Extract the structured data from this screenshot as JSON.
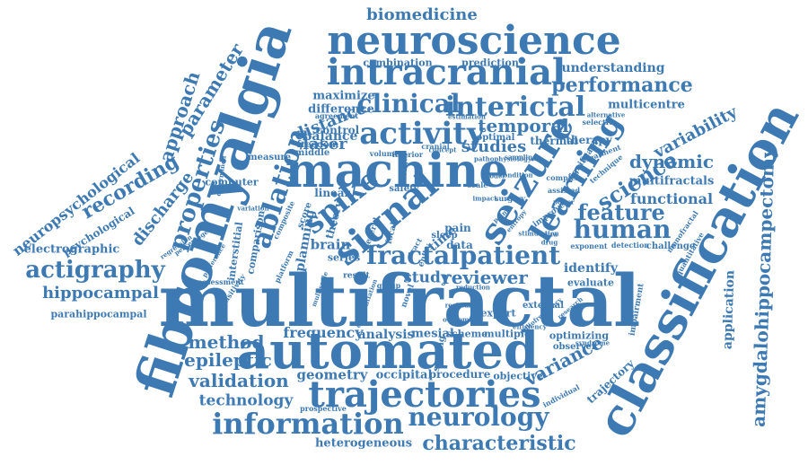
{
  "words": [
    "multifractal",
    "fibromyalgia",
    "classification",
    "automated",
    "machine",
    "neuroscience",
    "intracranial",
    "trajectories",
    "signal",
    "seizure",
    "learning",
    "fractal",
    "patient",
    "spike",
    "interictal",
    "clinical",
    "activity",
    "information",
    "neurology",
    "characteristic",
    "ablation",
    "properties",
    "recording",
    "approach",
    "parameter",
    "neuropsychological",
    "actigraphy",
    "hippocampal",
    "amygdalohippocampectomy",
    "human",
    "feature",
    "science",
    "performance",
    "biomedicine",
    "variability",
    "dynamic",
    "functional",
    "method",
    "epileptic",
    "validation",
    "technology",
    "reviewer",
    "study",
    "temporal",
    "laser",
    "distance",
    "balance",
    "studies",
    "combination",
    "prediction",
    "understanding",
    "multicentre",
    "variance",
    "trajectory",
    "discharge",
    "psychological",
    "electrographic",
    "parahippocampal",
    "frequency",
    "analysis",
    "mesial",
    "scheme",
    "multiple",
    "geometry",
    "occipital",
    "procedure",
    "objective",
    "heterogeneous",
    "application",
    "multifractals",
    "identify",
    "evaluate",
    "computer",
    "maximize",
    "difference",
    "agreement",
    "control",
    "freedom",
    "middle",
    "measure",
    "brain",
    "series",
    "planning",
    "time",
    "pain",
    "data",
    "sleep",
    "expert",
    "external",
    "optimizing",
    "observer",
    "challenge",
    "exponent",
    "detection",
    "impairment",
    "quantitative",
    "interstitial",
    "comparison",
    "assessment",
    "thermal",
    "optimal",
    "therapy",
    "individual",
    "prospective",
    "sensitivity",
    "linear",
    "safety",
    "theory",
    "composite",
    "volume",
    "inferior",
    "length",
    "estimation",
    "selective",
    "alternative",
    "sampling",
    "treatment",
    "complex",
    "technique",
    "significant",
    "assisted",
    "improve",
    "condition",
    "power",
    "platform",
    "regression",
    "preference",
    "variation",
    "determined",
    "percentage",
    "multiscale",
    "scale",
    "scaling",
    "concept",
    "cranial",
    "pathophysiology",
    "novel",
    "group",
    "result",
    "entry",
    "tract",
    "point",
    "impact",
    "surgery",
    "radiofrequency",
    "several",
    "score",
    "focal",
    "outcome",
    "resistant",
    "model",
    "aura",
    "drug",
    "research",
    "monofractal",
    "efficiency",
    "syndrome",
    "differentiation",
    "reduction",
    "entropy",
    "stimulation"
  ]
}
